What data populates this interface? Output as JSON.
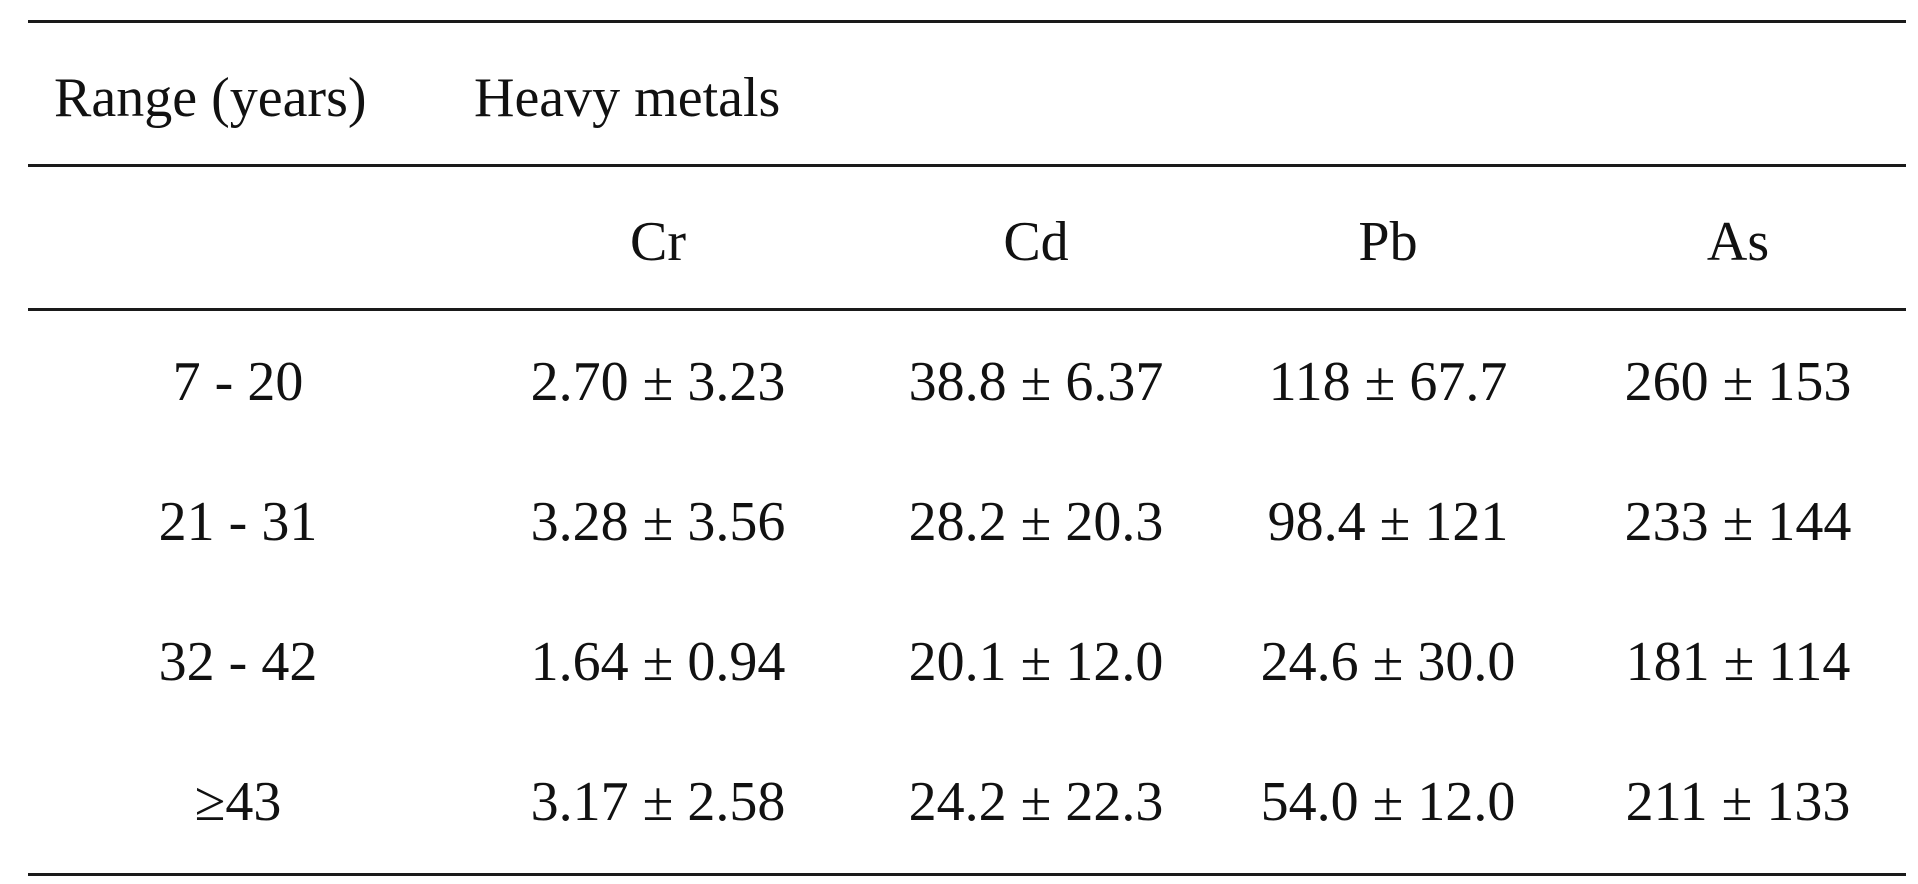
{
  "table": {
    "header": {
      "range_label": "Range (years)",
      "group_label": "Heavy metals",
      "metals": [
        "Cr",
        "Cd",
        "Pb",
        "As"
      ]
    },
    "rows": [
      {
        "range": "7 - 20",
        "values": [
          "2.70 ± 3.23",
          "38.8 ± 6.37",
          "118 ± 67.7",
          "260 ± 153"
        ]
      },
      {
        "range": "21 - 31",
        "values": [
          "3.28 ± 3.56",
          "28.2 ± 20.3",
          "98.4 ± 121",
          "233 ± 144"
        ]
      },
      {
        "range": "32 - 42",
        "values": [
          "1.64 ± 0.94",
          "20.1 ± 12.0",
          "24.6 ± 30.0",
          "181 ± 114"
        ]
      },
      {
        "range": "≥43",
        "values": [
          "3.17 ± 2.58",
          "24.2 ± 22.3",
          "54.0 ± 12.0",
          "211 ± 133"
        ]
      }
    ]
  }
}
